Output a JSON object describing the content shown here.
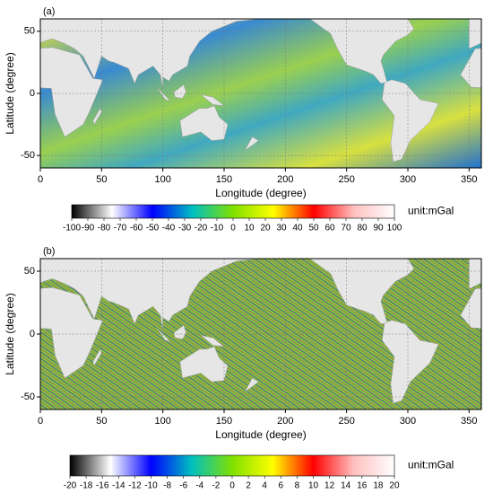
{
  "panels": [
    {
      "label": "(a)",
      "xlabel": "Longitude (degree)",
      "ylabel": "Latitude (degree)",
      "xlim": [
        0,
        360
      ],
      "ylim": [
        -60,
        60
      ],
      "xticks": [
        0,
        50,
        100,
        150,
        200,
        250,
        300,
        350
      ],
      "yticks": [
        -50,
        0,
        50
      ],
      "grid": true,
      "colorbar": {
        "ticks": [
          -100,
          -90,
          -80,
          -70,
          -60,
          -50,
          -40,
          -30,
          -20,
          -10,
          0,
          10,
          20,
          30,
          40,
          50,
          60,
          70,
          80,
          90,
          100
        ],
        "unit": "unit:mGal",
        "colormap": [
          "#000000",
          "#ffffff",
          "#0000ff",
          "#00c0c0",
          "#80e000",
          "#ffff00",
          "#ff0000",
          "#ffc0c0",
          "#ffffff"
        ]
      }
    },
    {
      "label": "(b)",
      "xlabel": "Longitude (degree)",
      "ylabel": "Latitude (degree)",
      "xlim": [
        0,
        360
      ],
      "ylim": [
        -60,
        60
      ],
      "xticks": [
        0,
        50,
        100,
        150,
        200,
        250,
        300,
        350
      ],
      "yticks": [
        -50,
        0,
        50
      ],
      "grid": true,
      "colorbar": {
        "ticks": [
          -20,
          -18,
          -16,
          -14,
          -12,
          -10,
          -8,
          -6,
          -4,
          -2,
          0,
          2,
          4,
          6,
          8,
          10,
          12,
          14,
          16,
          18,
          20
        ],
        "unit": "unit:mGal",
        "colormap": [
          "#000000",
          "#ffffff",
          "#0000ff",
          "#00c0c0",
          "#80e000",
          "#ffff00",
          "#ff0000",
          "#ffc0c0",
          "#ffffff"
        ]
      }
    }
  ]
}
